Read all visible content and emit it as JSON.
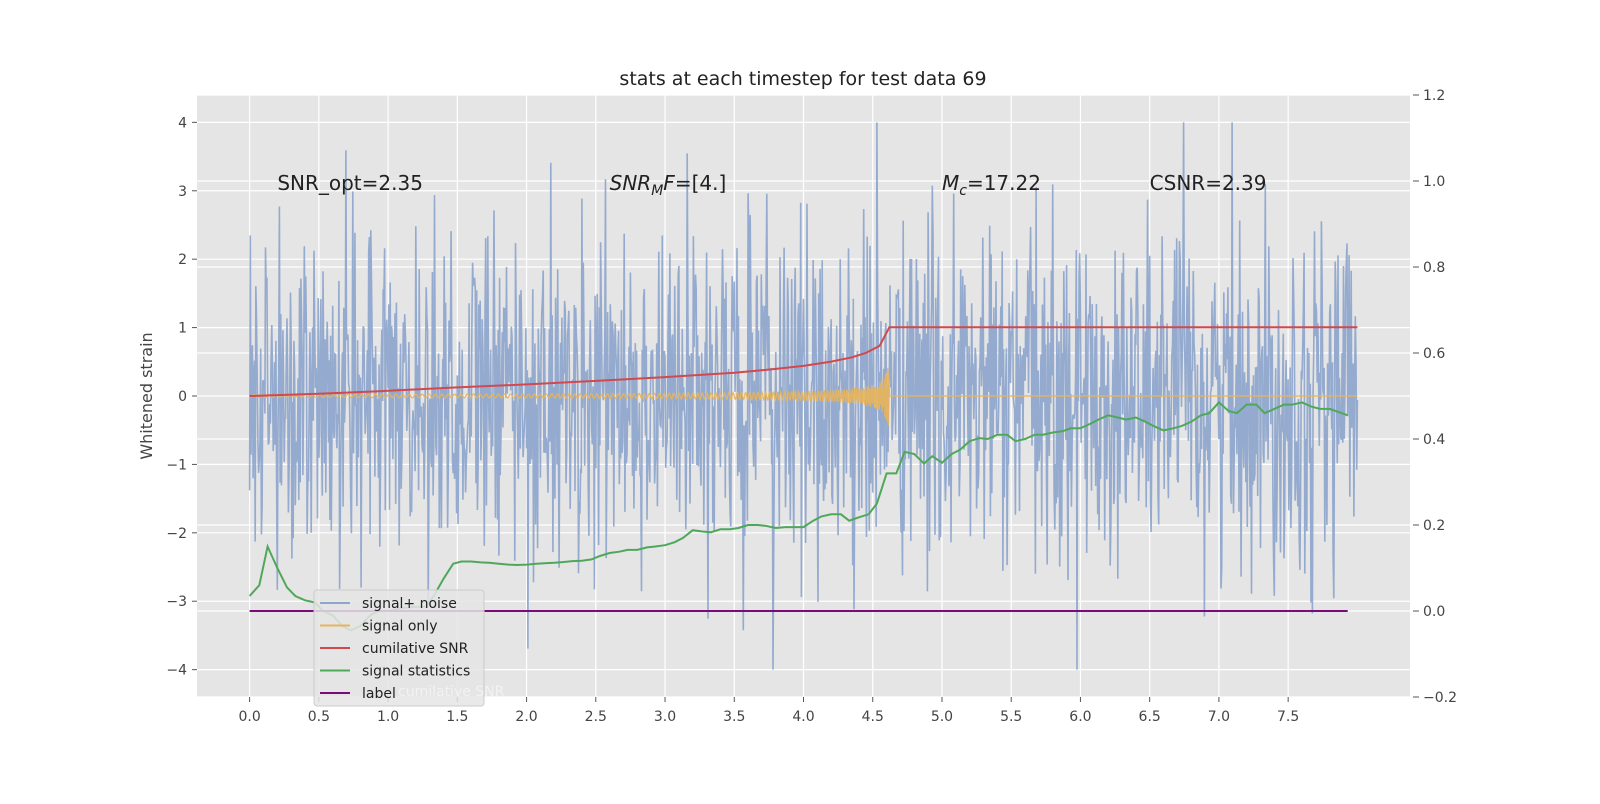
{
  "chart_data": {
    "type": "line",
    "title": "stats at each timestep for test data 69",
    "xlabel": "",
    "ylabel": "Whitened strain",
    "y2label": "",
    "xlim": [
      -0.38,
      8.38
    ],
    "ylim": [
      -4.4,
      4.4
    ],
    "y2lim": [
      -0.2,
      1.2
    ],
    "xticks": [
      "0.0",
      "0.5",
      "1.0",
      "1.5",
      "2.0",
      "2.5",
      "3.0",
      "3.5",
      "4.0",
      "4.5",
      "5.0",
      "5.5",
      "6.0",
      "6.5",
      "7.0",
      "7.5"
    ],
    "xtick_values": [
      0,
      0.5,
      1,
      1.5,
      2,
      2.5,
      3,
      3.5,
      4,
      4.5,
      5,
      5.5,
      6,
      6.5,
      7,
      7.5
    ],
    "yticks": [
      "−4",
      "−3",
      "−2",
      "−1",
      "0",
      "1",
      "2",
      "3",
      "4"
    ],
    "ytick_values": [
      -4,
      -3,
      -2,
      -1,
      0,
      1,
      2,
      3,
      4
    ],
    "y2ticks": [
      "−0.2",
      "0.0",
      "0.2",
      "0.4",
      "0.6",
      "0.8",
      "1.0",
      "1.2"
    ],
    "y2tick_values": [
      -0.2,
      0,
      0.2,
      0.4,
      0.6,
      0.8,
      1.0,
      1.2
    ],
    "grid": true,
    "legend_position": "lower-left",
    "annotations": [
      {
        "text": "SNR_opt=2.35",
        "x": 0.2,
        "y": 3.1
      },
      {
        "text": "SNR_MF=[4.]",
        "x": 2.6,
        "y": 3.1
      },
      {
        "text": "M_c=17.22",
        "x": 5.0,
        "y": 3.1
      },
      {
        "text": "CSNR=2.39",
        "x": 6.5,
        "y": 3.1
      }
    ],
    "series": [
      {
        "name": "signal+ noise",
        "axis": "left",
        "color": "#8fa6cc",
        "kind": "noise",
        "x_range": [
          0,
          8
        ],
        "typical_amplitude": 2.0,
        "peak_amplitude": 4.0
      },
      {
        "name": "signal only",
        "axis": "left",
        "color": "#e8b45a",
        "kind": "chirp",
        "x_range": [
          0,
          8
        ],
        "merger_x": 4.62,
        "peak_amplitude": 0.55
      },
      {
        "name": "cumilative SNR",
        "axis": "right",
        "color": "#d1494e",
        "x": [
          0,
          0.5,
          1.0,
          1.5,
          2.0,
          2.5,
          3.0,
          3.5,
          3.8,
          4.0,
          4.2,
          4.35,
          4.45,
          4.55,
          4.62,
          5.0,
          6.0,
          7.0,
          8.0
        ],
        "values": [
          0.5,
          0.505,
          0.512,
          0.52,
          0.527,
          0.535,
          0.544,
          0.554,
          0.563,
          0.57,
          0.58,
          0.59,
          0.6,
          0.617,
          0.66,
          0.66,
          0.66,
          0.66,
          0.66
        ]
      },
      {
        "name": "signal statistics",
        "axis": "right",
        "color": "#4fa85a",
        "x": [
          0,
          0.07,
          0.13,
          0.2,
          0.27,
          0.33,
          0.4,
          0.47,
          0.53,
          0.6,
          0.67,
          0.73,
          0.8,
          0.87,
          0.93,
          1.0,
          1.07,
          1.13,
          1.2,
          1.27,
          1.33,
          1.4,
          1.47,
          1.53,
          1.6,
          1.67,
          1.73,
          1.8,
          1.87,
          1.93,
          2.0,
          2.07,
          2.13,
          2.2,
          2.27,
          2.33,
          2.4,
          2.47,
          2.53,
          2.6,
          2.67,
          2.73,
          2.8,
          2.87,
          2.93,
          3.0,
          3.07,
          3.13,
          3.2,
          3.27,
          3.33,
          3.4,
          3.47,
          3.53,
          3.6,
          3.67,
          3.73,
          3.8,
          3.87,
          3.93,
          4.0,
          4.07,
          4.13,
          4.2,
          4.27,
          4.33,
          4.4,
          4.47,
          4.53,
          4.6,
          4.67,
          4.73,
          4.8,
          4.87,
          4.93,
          5.0,
          5.07,
          5.13,
          5.2,
          5.27,
          5.33,
          5.4,
          5.47,
          5.53,
          5.6,
          5.67,
          5.73,
          5.8,
          5.87,
          5.93,
          6.0,
          6.07,
          6.13,
          6.2,
          6.27,
          6.33,
          6.4,
          6.47,
          6.53,
          6.6,
          6.67,
          6.73,
          6.8,
          6.87,
          6.93,
          7.0,
          7.07,
          7.13,
          7.2,
          7.27,
          7.33,
          7.4,
          7.47,
          7.53,
          7.6,
          7.67,
          7.73,
          7.8,
          7.87,
          7.93
        ],
        "values": [
          0.035,
          0.06,
          0.15,
          0.1,
          0.055,
          0.035,
          0.025,
          0.02,
          0.0,
          -0.01,
          -0.035,
          -0.045,
          -0.035,
          -0.01,
          0.0,
          0.0,
          0.005,
          0.008,
          0.01,
          0.01,
          0.035,
          0.075,
          0.11,
          0.115,
          0.115,
          0.113,
          0.112,
          0.11,
          0.108,
          0.107,
          0.108,
          0.11,
          0.111,
          0.112,
          0.114,
          0.116,
          0.117,
          0.12,
          0.128,
          0.135,
          0.138,
          0.142,
          0.142,
          0.148,
          0.15,
          0.153,
          0.16,
          0.17,
          0.188,
          0.185,
          0.183,
          0.19,
          0.19,
          0.193,
          0.2,
          0.2,
          0.198,
          0.193,
          0.195,
          0.195,
          0.195,
          0.21,
          0.22,
          0.225,
          0.225,
          0.21,
          0.218,
          0.225,
          0.25,
          0.32,
          0.32,
          0.37,
          0.365,
          0.343,
          0.36,
          0.345,
          0.365,
          0.375,
          0.395,
          0.402,
          0.4,
          0.41,
          0.41,
          0.395,
          0.4,
          0.41,
          0.41,
          0.415,
          0.418,
          0.425,
          0.425,
          0.435,
          0.445,
          0.455,
          0.45,
          0.445,
          0.45,
          0.44,
          0.43,
          0.42,
          0.425,
          0.43,
          0.44,
          0.455,
          0.46,
          0.485,
          0.465,
          0.46,
          0.48,
          0.48,
          0.46,
          0.47,
          0.48,
          0.48,
          0.485,
          0.475,
          0.47,
          0.47,
          0.462,
          0.455
        ],
        "note": "right-axis series"
      },
      {
        "name": "label",
        "axis": "right",
        "color": "#7a0c7a",
        "x": [
          0,
          7.93
        ],
        "values": [
          0.0,
          0.0
        ]
      }
    ],
    "legend": [
      {
        "label": "signal+ noise",
        "color": "#8fa6cc"
      },
      {
        "label": "signal only",
        "color": "#e8b45a"
      },
      {
        "label": "cumilative SNR",
        "color": "#d1494e"
      },
      {
        "label": "signal statistics",
        "color": "#4fa85a"
      },
      {
        "label": "label",
        "color": "#7a0c7a"
      }
    ],
    "legend_ghost_text": "cumilative SNR"
  }
}
